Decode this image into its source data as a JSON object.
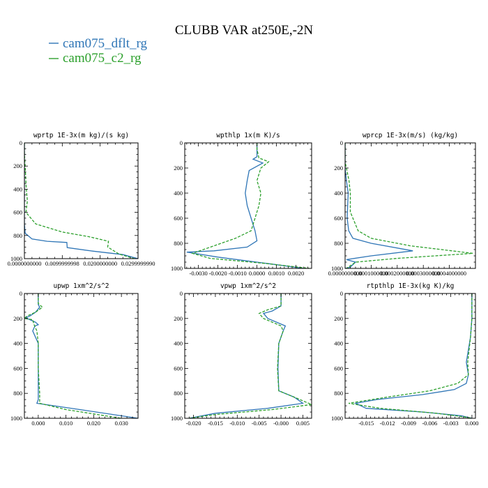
{
  "figure": {
    "title": "CLUBB VAR at250E,-2N",
    "legend": [
      {
        "label": "cam075_dflt_rg",
        "color": "#2e75b6",
        "dash": "solid"
      },
      {
        "label": "cam075_c2_rg",
        "color": "#2ca02c",
        "dash": "dashed"
      }
    ]
  },
  "chart_data": [
    {
      "type": "line",
      "title": "wprtp  1E-3x(m kg)/(s kg)",
      "ylim": [
        1000,
        0
      ],
      "xlim": [
        0,
        0.03
      ],
      "yticks": [
        "0",
        "200",
        "400",
        "600",
        "800",
        "1000"
      ],
      "yvals": [
        0,
        200,
        400,
        600,
        800,
        1000
      ],
      "xticks": [
        {
          "v": 0,
          "label": "0.0000000000"
        },
        {
          "v": 0.01,
          "label": "0.0099999998"
        },
        {
          "v": 0.02,
          "label": "0.0200000000"
        },
        {
          "v": 0.03,
          "label": "0.0299999990"
        }
      ],
      "series": [
        {
          "name": "cam075_dflt_rg",
          "x": [
            0,
            0,
            0,
            0.0002,
            0.002,
            0.006,
            0.0112,
            0.0113,
            0.018,
            0.026,
            0.03
          ],
          "y": [
            0,
            400,
            700,
            780,
            830,
            850,
            860,
            905,
            935,
            965,
            1000
          ]
        },
        {
          "name": "cam075_c2_rg",
          "x": [
            0,
            0,
            0.0002,
            0.0005,
            0.0008,
            0.0004,
            0.003,
            0.01,
            0.017,
            0.0222,
            0.022,
            0.025,
            0.029
          ],
          "y": [
            0,
            100,
            200,
            400,
            500,
            600,
            700,
            770,
            810,
            850,
            900,
            960,
            1000
          ]
        }
      ]
    },
    {
      "type": "line",
      "title": "wpthlp  1x(m K)/s",
      "ylim": [
        1000,
        0
      ],
      "xlim": [
        -0.0037,
        0.0028
      ],
      "yticks": [
        "0",
        "200",
        "400",
        "600",
        "800",
        "1000"
      ],
      "yvals": [
        0,
        200,
        400,
        600,
        800,
        1000
      ],
      "xticks": [
        {
          "v": -0.003,
          "label": "-0.0030"
        },
        {
          "v": -0.002,
          "label": "-0.0020"
        },
        {
          "v": -0.001,
          "label": "-0.0010"
        },
        {
          "v": 0,
          "label": "0.0000"
        },
        {
          "v": 0.001,
          "label": "0.0010"
        },
        {
          "v": 0.002,
          "label": "0.0020"
        }
      ],
      "series": [
        {
          "name": "cam075_dflt_rg",
          "x": [
            0,
            0,
            -0.0002,
            0.0003,
            -0.0004,
            -0.0005,
            -0.0006,
            -0.0005,
            -0.0003,
            -0.0001,
            0,
            -0.0005,
            -0.0022,
            -0.0036,
            -0.002,
            0.0005,
            0.0024
          ],
          "y": [
            0,
            110,
            130,
            160,
            220,
            300,
            400,
            500,
            600,
            700,
            780,
            830,
            860,
            870,
            910,
            960,
            1000
          ]
        },
        {
          "name": "cam075_c2_rg",
          "x": [
            0,
            0,
            0.0001,
            0.0006,
            0.0002,
            0,
            0.0002,
            0.0001,
            -0.0001,
            -0.0003,
            -0.0011,
            -0.0022,
            -0.0033,
            -0.0024,
            0.0004,
            0.0027
          ],
          "y": [
            0,
            50,
            120,
            150,
            200,
            300,
            400,
            500,
            600,
            700,
            760,
            820,
            880,
            920,
            960,
            1000
          ]
        }
      ]
    },
    {
      "type": "line",
      "title": "wprcp  1E-3x(m/s) (kg/kg)",
      "ylim": [
        1000,
        0
      ],
      "xlim": [
        0,
        0.0005
      ],
      "yticks": [
        "0",
        "200",
        "400",
        "600",
        "800",
        "1000"
      ],
      "yvals": [
        0,
        200,
        400,
        600,
        800,
        1000
      ],
      "xticks": [
        {
          "v": 0,
          "label": "0.0000000000"
        },
        {
          "v": 0.0001,
          "label": "0.0001000000"
        },
        {
          "v": 0.0002,
          "label": "0.0002000000"
        },
        {
          "v": 0.0003,
          "label": "0.0003000000"
        },
        {
          "v": 0.0004,
          "label": "0.0004000000"
        }
      ],
      "series": [
        {
          "name": "cam075_dflt_rg",
          "x": [
            0,
            0,
            5e-06,
            1.2e-05,
            1e-05,
            8e-06,
            1.4e-05,
            3e-05,
            0.0001,
            0.00026,
            0.0001,
            5e-06,
            4e-05,
            2e-05,
            0
          ],
          "y": [
            0,
            200,
            300,
            400,
            500,
            600,
            700,
            760,
            800,
            860,
            900,
            930,
            950,
            990,
            1000
          ]
        },
        {
          "name": "cam075_c2_rg",
          "x": [
            0,
            0,
            1.5e-05,
            2e-05,
            2e-05,
            5e-05,
            0.0001,
            0.00025,
            0.00049,
            0.0002,
            4e-05,
            5e-06
          ],
          "y": [
            0,
            150,
            300,
            400,
            550,
            700,
            760,
            820,
            880,
            920,
            950,
            1000
          ]
        }
      ]
    },
    {
      "type": "line",
      "title": "upwp   1xm^2/s^2",
      "ylim": [
        1000,
        0
      ],
      "xlim": [
        -0.005,
        0.036
      ],
      "yticks": [
        "0",
        "200",
        "400",
        "600",
        "800",
        "1000"
      ],
      "yvals": [
        0,
        200,
        400,
        600,
        800,
        1000
      ],
      "xticks": [
        {
          "v": 0,
          "label": "0.000"
        },
        {
          "v": 0.01,
          "label": "0.010"
        },
        {
          "v": 0.02,
          "label": "0.020"
        },
        {
          "v": 0.03,
          "label": "0.030"
        }
      ],
      "series": [
        {
          "name": "cam075_dflt_rg",
          "x": [
            0,
            0,
            0.0005,
            -0.001,
            -0.003,
            -0.0045,
            -0.003,
            -0.001,
            0,
            -0.0012,
            -0.002,
            0,
            0,
            0,
            -0.0005,
            0.015,
            0.036
          ],
          "y": [
            0,
            90,
            110,
            150,
            180,
            195,
            210,
            230,
            250,
            260,
            300,
            400,
            600,
            850,
            880,
            930,
            1000
          ]
        },
        {
          "name": "cam075_c2_rg",
          "x": [
            0,
            0,
            0.0015,
            -0.001,
            -0.004,
            -0.005,
            -0.002,
            -0.0015,
            -0.0005,
            0,
            0,
            0.0005,
            0.0005,
            0.01,
            0.03
          ],
          "y": [
            0,
            80,
            110,
            150,
            180,
            200,
            210,
            250,
            300,
            400,
            600,
            800,
            880,
            930,
            1000
          ]
        }
      ]
    },
    {
      "type": "line",
      "title": "vpwp   1xm^2/s^2",
      "ylim": [
        1000,
        0
      ],
      "xlim": [
        -0.022,
        0.007
      ],
      "yticks": [
        "0",
        "200",
        "400",
        "600",
        "800",
        "1000"
      ],
      "yvals": [
        0,
        200,
        400,
        600,
        800,
        1000
      ],
      "xticks": [
        {
          "v": -0.02,
          "label": "-0.020"
        },
        {
          "v": -0.015,
          "label": "-0.015"
        },
        {
          "v": -0.01,
          "label": "-0.010"
        },
        {
          "v": -0.005,
          "label": "-0.005"
        },
        {
          "v": 0,
          "label": "-0.000"
        },
        {
          "v": 0.005,
          "label": "0.005"
        }
      ],
      "series": [
        {
          "name": "cam075_dflt_rg",
          "x": [
            0,
            0,
            -0.002,
            -0.004,
            -0.003,
            0.001,
            0.0005,
            -0.0005,
            -0.0007,
            -0.0005,
            0.003,
            0.005,
            -0.003,
            -0.015,
            -0.021
          ],
          "y": [
            0,
            100,
            140,
            160,
            200,
            260,
            300,
            400,
            600,
            780,
            830,
            880,
            920,
            960,
            1000
          ]
        },
        {
          "name": "cam075_c2_rg",
          "x": [
            0,
            0,
            -0.003,
            -0.005,
            -0.004,
            0,
            0.0005,
            -0.0005,
            -0.0008,
            -0.0005,
            0.003,
            0.007,
            -0.002,
            -0.015,
            -0.021
          ],
          "y": [
            0,
            100,
            130,
            160,
            200,
            260,
            300,
            400,
            600,
            780,
            830,
            890,
            930,
            970,
            1000
          ]
        }
      ]
    },
    {
      "type": "line",
      "title": "rtpthlp  1E-3x(kg K)/kg",
      "ylim": [
        1000,
        0
      ],
      "xlim": [
        -0.018,
        0.0005
      ],
      "yticks": [
        "0",
        "200",
        "400",
        "600",
        "800",
        "1000"
      ],
      "yvals": [
        0,
        200,
        400,
        600,
        800,
        1000
      ],
      "xticks": [
        {
          "v": -0.015,
          "label": "-0.015"
        },
        {
          "v": -0.012,
          "label": "-0.012"
        },
        {
          "v": -0.009,
          "label": "-0.009"
        },
        {
          "v": -0.006,
          "label": "-0.006"
        },
        {
          "v": -0.003,
          "label": "-0.003"
        },
        {
          "v": 0,
          "label": "0.000"
        }
      ],
      "series": [
        {
          "name": "cam075_dflt_rg",
          "x": [
            0,
            0,
            -0.0002,
            -0.0005,
            -0.0008,
            -0.0005,
            -0.0008,
            -0.0025,
            -0.007,
            -0.0135,
            -0.0165,
            -0.015,
            -0.007,
            -0.0015,
            0
          ],
          "y": [
            0,
            200,
            350,
            450,
            550,
            650,
            720,
            770,
            810,
            850,
            880,
            920,
            950,
            980,
            1000
          ]
        },
        {
          "name": "cam075_c2_rg",
          "x": [
            0,
            0,
            -0.0002,
            -0.0004,
            -0.0006,
            -0.0005,
            -0.002,
            -0.006,
            -0.012,
            -0.0175,
            -0.013,
            -0.005,
            -0.001,
            0
          ],
          "y": [
            0,
            200,
            350,
            450,
            550,
            650,
            720,
            780,
            830,
            880,
            920,
            960,
            990,
            1000
          ]
        }
      ]
    }
  ]
}
